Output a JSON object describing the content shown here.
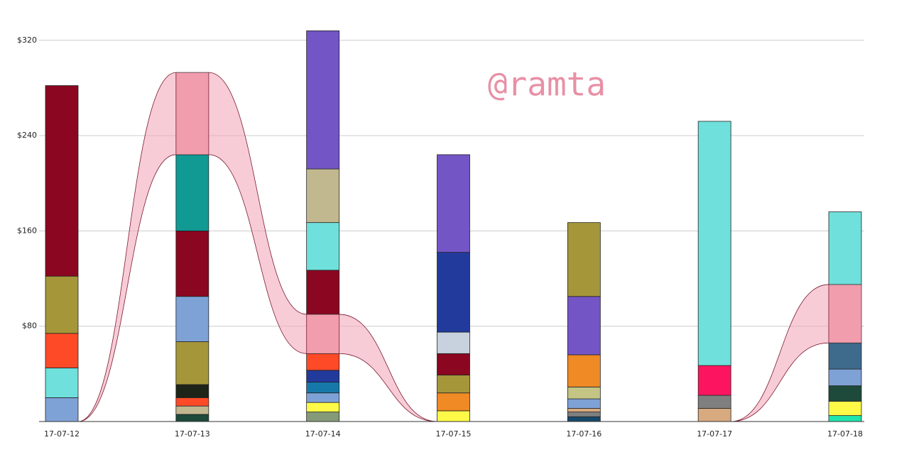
{
  "chart_data": {
    "type": "stacked-bar",
    "watermark": "@ramta",
    "categories": [
      "17-07-12",
      "17-07-13",
      "17-07-14",
      "17-07-15",
      "17-07-16",
      "17-07-17",
      "17-07-18"
    ],
    "stacks": [
      {
        "segments": [
          {
            "color": "#7fa2d6",
            "value": 20
          },
          {
            "color": "#6fe0dc",
            "value": 25
          },
          {
            "color": "#ff4a28",
            "value": 29
          },
          {
            "color": "#a5963a",
            "value": 48
          },
          {
            "color": "#8b0620",
            "value": 160
          }
        ]
      },
      {
        "segments": [
          {
            "color": "#1d4a3a",
            "value": 6
          },
          {
            "color": "#c2b890",
            "value": 7
          },
          {
            "color": "#ff4a28",
            "value": 7
          },
          {
            "color": "#1e2418",
            "value": 11
          },
          {
            "color": "#a5963a",
            "value": 36
          },
          {
            "color": "#7fa2d6",
            "value": 38
          },
          {
            "color": "#8b0620",
            "value": 55
          },
          {
            "color": "#119a94",
            "value": 64
          },
          {
            "color": "#f098a8",
            "value": 69,
            "highlight": true
          }
        ]
      },
      {
        "segments": [
          {
            "color": "#849a78",
            "value": 8
          },
          {
            "color": "#fffa48",
            "value": 8
          },
          {
            "color": "#7fa2d6",
            "value": 8
          },
          {
            "color": "#1678a8",
            "value": 9
          },
          {
            "color": "#213a9c",
            "value": 10
          },
          {
            "color": "#ff4a28",
            "value": 14
          },
          {
            "color": "#f098a8",
            "value": 33,
            "highlight": true
          },
          {
            "color": "#8b0620",
            "value": 37
          },
          {
            "color": "#6fe0dc",
            "value": 40
          },
          {
            "color": "#c2b890",
            "value": 45
          },
          {
            "color": "#7355c6",
            "value": 116
          }
        ]
      },
      {
        "segments": [
          {
            "color": "#fffa48",
            "value": 9
          },
          {
            "color": "#f08a24",
            "value": 15
          },
          {
            "color": "#a5963a",
            "value": 15
          },
          {
            "color": "#8b0620",
            "value": 18
          },
          {
            "color": "#c8d2de",
            "value": 18
          },
          {
            "color": "#213a9c",
            "value": 67
          },
          {
            "color": "#7355c6",
            "value": 82
          }
        ]
      },
      {
        "segments": [
          {
            "color": "#164a6c",
            "value": 4
          },
          {
            "color": "#7f7f7f",
            "value": 4
          },
          {
            "color": "#d8aa80",
            "value": 3
          },
          {
            "color": "#7fa2d6",
            "value": 8
          },
          {
            "color": "#c4c484",
            "value": 10
          },
          {
            "color": "#f08a24",
            "value": 27
          },
          {
            "color": "#7355c6",
            "value": 49
          },
          {
            "color": "#a5963a",
            "value": 62
          }
        ]
      },
      {
        "segments": [
          {
            "color": "#d8aa80",
            "value": 11
          },
          {
            "color": "#7f7f7f",
            "value": 11
          },
          {
            "color": "#fc1460",
            "value": 25
          },
          {
            "color": "#6fe0dc",
            "value": 205
          }
        ]
      },
      {
        "segments": [
          {
            "color": "#1ee6ae",
            "value": 5
          },
          {
            "color": "#fffa48",
            "value": 12
          },
          {
            "color": "#1d4a3a",
            "value": 13
          },
          {
            "color": "#7fa2d6",
            "value": 14
          },
          {
            "color": "#3e6a8c",
            "value": 22
          },
          {
            "color": "#f098a8",
            "value": 49,
            "highlight": true
          },
          {
            "color": "#6fe0dc",
            "value": 61
          }
        ]
      }
    ],
    "ribbon_color": "#f4aabb",
    "ribbon_stroke": "#7a1a30",
    "ylim": [
      0,
      330
    ],
    "yticks": [
      {
        "value": 80,
        "label": "$80"
      },
      {
        "value": 160,
        "label": "$160"
      },
      {
        "value": 240,
        "label": "$240"
      },
      {
        "value": 320,
        "label": "$320"
      }
    ],
    "grid": true
  }
}
